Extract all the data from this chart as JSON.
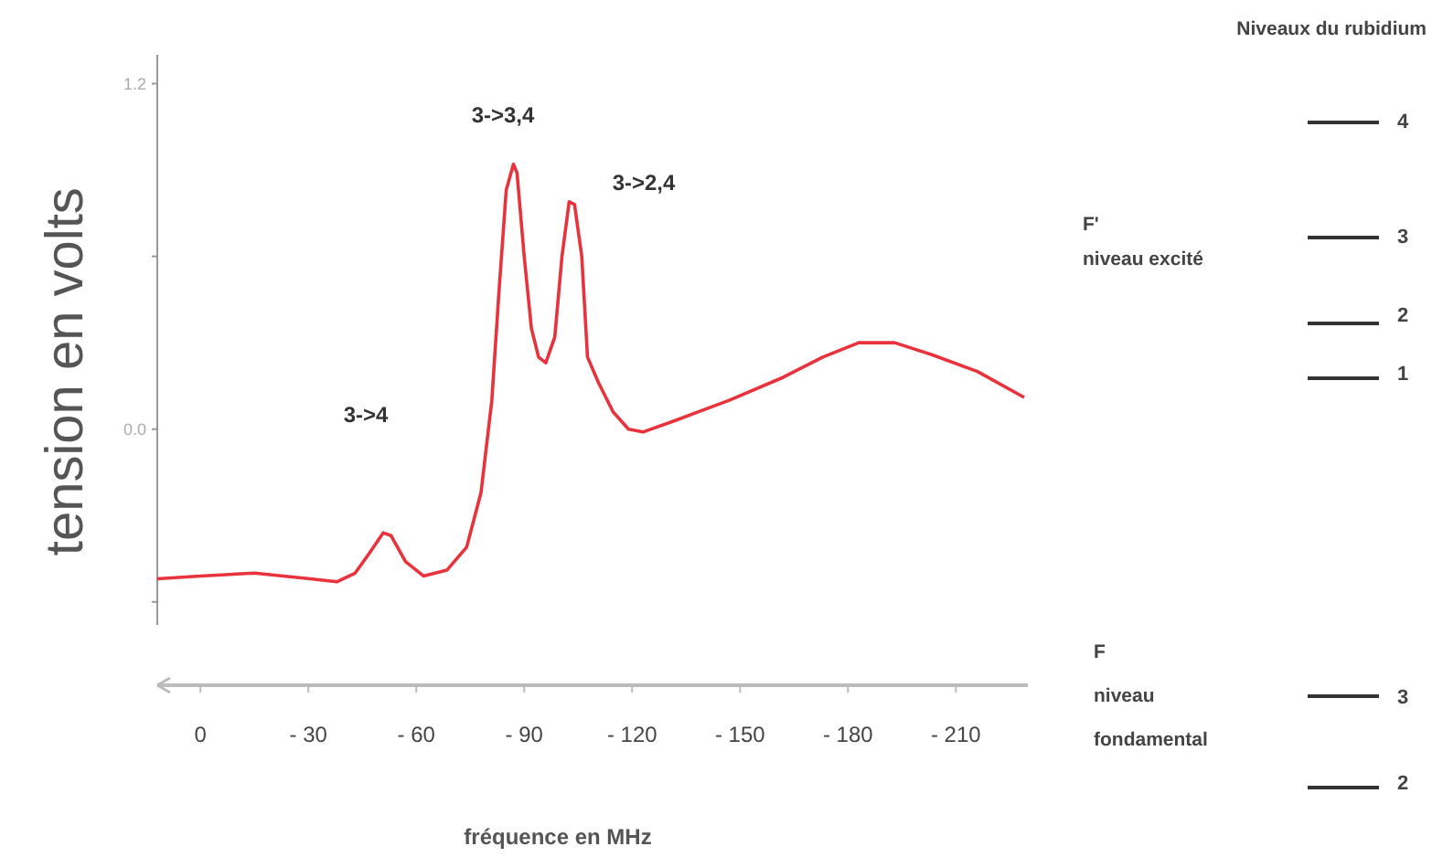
{
  "chart_data": {
    "type": "line",
    "xlabel": "fréquence en MHz",
    "ylabel": "tension en volts",
    "x": [
      12,
      0,
      -15,
      -30.5,
      -38,
      -43,
      -47,
      -50.8,
      -53,
      -57,
      -62,
      -68.5,
      -74,
      -78,
      -81,
      -83,
      -85,
      -87,
      -88,
      -90,
      -92,
      -94,
      -96,
      -98.5,
      -100.5,
      -102.5,
      -104,
      -106,
      -107.6,
      -110.7,
      -114.7,
      -119,
      -123,
      -132,
      -147,
      -162,
      -173,
      -183,
      -193,
      -203,
      -216,
      -229
    ],
    "series": [
      {
        "color": "#e8323c",
        "values": [
          -0.52,
          -0.51,
          -0.5,
          -0.52,
          -0.53,
          -0.5,
          -0.43,
          -0.36,
          -0.37,
          -0.46,
          -0.51,
          -0.49,
          -0.41,
          -0.22,
          0.1,
          0.48,
          0.83,
          0.92,
          0.89,
          0.6,
          0.35,
          0.25,
          0.23,
          0.32,
          0.6,
          0.79,
          0.78,
          0.6,
          0.25,
          0.16,
          0.06,
          0.0,
          -0.01,
          0.03,
          0.1,
          0.18,
          0.25,
          0.3,
          0.3,
          0.26,
          0.2,
          0.11
        ]
      }
    ],
    "xlim": [
      12,
      -230
    ],
    "xticks": [
      0,
      {
        "value": -30,
        "label": "- 30"
      },
      {
        "value": -60,
        "label": "- 60"
      },
      {
        "value": -90,
        "label": "- 90"
      },
      {
        "value": -120,
        "label": "- 120"
      },
      {
        "value": -150,
        "label": "- 150"
      },
      {
        "value": -180,
        "label": "- 180"
      },
      {
        "value": -210,
        "label": "- 210"
      }
    ],
    "ylim": [
      -0.68,
      1.3
    ],
    "yticks": [
      {
        "value": -0.6,
        "label": null
      },
      {
        "value": 0,
        "label": "0.0"
      },
      {
        "value": 0.6,
        "label": null
      },
      {
        "value": 1.2,
        "label": "1.2"
      }
    ],
    "grid": false,
    "marker": "none",
    "line_style": "solid",
    "annotations": [
      "3->4",
      "3->3,4",
      "3->2,4",
      "Niveaux du rubidium",
      "F'",
      "niveau excité",
      "4",
      "3",
      "2",
      "1",
      "F",
      "niveau",
      "fondamental",
      "3",
      "2"
    ]
  }
}
